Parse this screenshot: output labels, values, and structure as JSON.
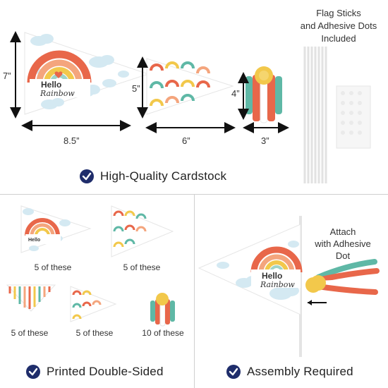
{
  "colors": {
    "check_circle": "#1f2d6b",
    "divider": "#cfcfcf",
    "arrow": "#111111",
    "cloud": "#cfe6f0",
    "coral": "#e8674a",
    "peach": "#f4a57d",
    "yellow": "#f2c84b",
    "teal": "#5fb8a6"
  },
  "top": {
    "dimensions": {
      "large_height": "7”",
      "large_width": "8.5”",
      "medium_height": "5”",
      "medium_width": "6”",
      "tassel_height": "4”",
      "tassel_width": "3”"
    },
    "large_pennant_text": [
      "Hello",
      "Rainbow"
    ],
    "flag_sticks": {
      "line1": "Flag Sticks",
      "line2": "and Adhesive Dots",
      "line3": "Included"
    },
    "feature": "High-Quality Cardstock"
  },
  "bottom_left": {
    "captions": [
      "5 of these",
      "5 of these",
      "5 of these",
      "5 of these",
      "10 of these"
    ],
    "feature": "Printed Double-Sided"
  },
  "bottom_right": {
    "attach": {
      "line1": "Attach",
      "line2": "with Adhesive",
      "line3": "Dot"
    },
    "pennant_text": [
      "Hello",
      "Rainbow"
    ],
    "feature": "Assembly Required"
  },
  "icons": [
    "checkmark-circle-icon",
    "arrow-left-icon",
    "double-arrow-icon"
  ]
}
